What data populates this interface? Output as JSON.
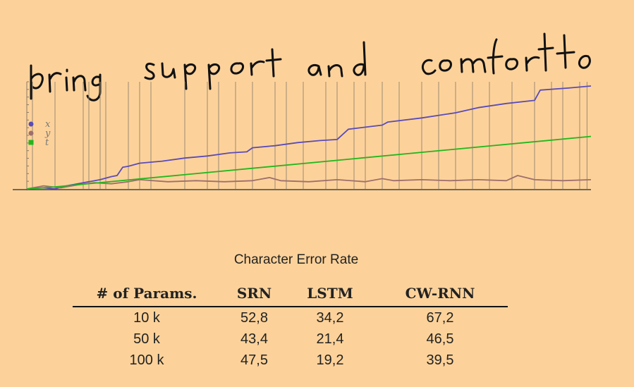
{
  "handwritten_annotation": "bring support and comfort to",
  "chart_data": {
    "type": "line",
    "legend": [
      "x",
      "y",
      "t"
    ],
    "x_range": [
      0,
      100
    ],
    "y_range": [
      0,
      100
    ],
    "vertical_marker_positions": [
      1,
      5,
      10,
      11,
      13,
      14,
      18,
      20,
      22,
      28,
      32,
      34,
      37,
      40,
      44,
      46,
      49,
      53,
      55,
      58,
      60,
      63,
      66,
      70,
      73,
      76,
      79,
      82,
      86,
      90,
      93,
      95,
      98,
      99.3
    ],
    "series": [
      {
        "name": "x",
        "color": "#5a4bb8",
        "x": [
          0,
          3,
          5,
          7,
          9,
          11,
          13,
          15,
          16,
          17,
          18,
          20,
          24,
          28,
          32,
          36,
          39,
          40,
          44,
          48,
          52,
          55,
          57,
          60,
          63,
          64,
          70,
          76,
          80,
          85,
          90,
          91,
          96,
          100
        ],
        "y": [
          0,
          1,
          0,
          3,
          5,
          7,
          9,
          12,
          13,
          21,
          22,
          25,
          27,
          30,
          32,
          35,
          36,
          40,
          42,
          45,
          47,
          48,
          58,
          60,
          62,
          65,
          69,
          74,
          79,
          83,
          86,
          96,
          98,
          100
        ]
      },
      {
        "name": "y",
        "color": "#9e6f6c",
        "x": [
          0,
          3,
          6,
          9,
          12,
          15,
          18,
          20,
          25,
          30,
          35,
          40,
          43,
          45,
          50,
          55,
          60,
          63,
          65,
          70,
          75,
          80,
          85,
          87,
          90,
          95,
          100
        ],
        "y": [
          0,
          3,
          1,
          4,
          6,
          5,
          7,
          9,
          7,
          8,
          7,
          8,
          11,
          8,
          7,
          9,
          7,
          10,
          8,
          9,
          8,
          9,
          8,
          13,
          9,
          8,
          9
        ]
      },
      {
        "name": "t",
        "color": "#22b61c",
        "x": [
          0,
          5,
          100
        ],
        "y": [
          0,
          2,
          51
        ]
      }
    ]
  },
  "table": {
    "caption": "Character Error Rate",
    "headers": [
      "# of Params.",
      "SRN",
      "LSTM",
      "CW-RNN"
    ],
    "rows": [
      [
        "10 k",
        "52,8",
        "34,2",
        "67,2"
      ],
      [
        "50 k",
        "43,4",
        "21,4",
        "46,5"
      ],
      [
        "100 k",
        "47,5",
        "19,2",
        "39,5"
      ]
    ]
  }
}
